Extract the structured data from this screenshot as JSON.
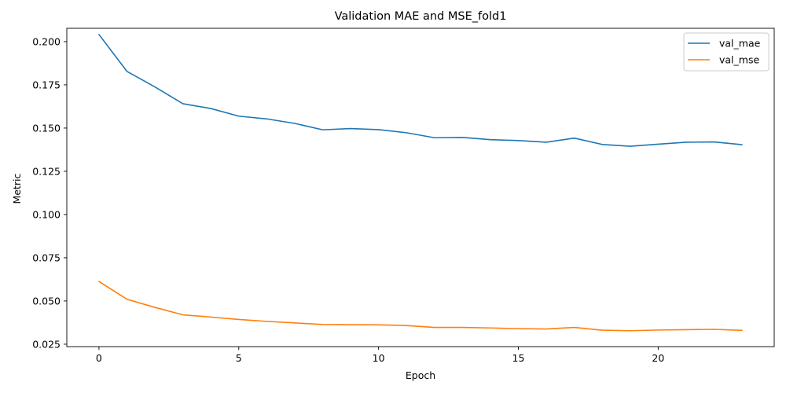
{
  "chart_data": {
    "type": "line",
    "title": "Validation MAE and MSE_fold1",
    "xlabel": "Epoch",
    "ylabel": "Metric",
    "xlim": [
      -1.15,
      24.15
    ],
    "ylim": [
      0.0236,
      0.2077
    ],
    "xticks": [
      0,
      5,
      10,
      15,
      20
    ],
    "xtick_labels": [
      "0",
      "5",
      "10",
      "15",
      "20"
    ],
    "yticks": [
      0.025,
      0.05,
      0.075,
      0.1,
      0.125,
      0.15,
      0.175,
      0.2
    ],
    "ytick_labels": [
      "0.025",
      "0.050",
      "0.075",
      "0.100",
      "0.125",
      "0.150",
      "0.175",
      "0.200"
    ],
    "grid": false,
    "legend_position": "top-right",
    "x": [
      0,
      1,
      2,
      3,
      4,
      5,
      6,
      7,
      8,
      9,
      10,
      11,
      12,
      13,
      14,
      15,
      16,
      17,
      18,
      19,
      20,
      21,
      22,
      23
    ],
    "series": [
      {
        "name": "val_mae",
        "color": "#1f77b4",
        "values": [
          0.2041,
          0.1828,
          0.1738,
          0.1641,
          0.1613,
          0.1569,
          0.1553,
          0.1527,
          0.149,
          0.1497,
          0.1491,
          0.1473,
          0.1444,
          0.1446,
          0.1433,
          0.1428,
          0.1418,
          0.1442,
          0.1405,
          0.1395,
          0.1407,
          0.1418,
          0.142,
          0.1404
        ]
      },
      {
        "name": "val_mse",
        "color": "#ff7f0e",
        "values": [
          0.0613,
          0.051,
          0.0463,
          0.042,
          0.0407,
          0.0393,
          0.0382,
          0.0373,
          0.0364,
          0.0363,
          0.0362,
          0.0358,
          0.0347,
          0.0347,
          0.0344,
          0.034,
          0.0338,
          0.0347,
          0.0331,
          0.0328,
          0.0332,
          0.0334,
          0.0336,
          0.033
        ]
      }
    ]
  }
}
